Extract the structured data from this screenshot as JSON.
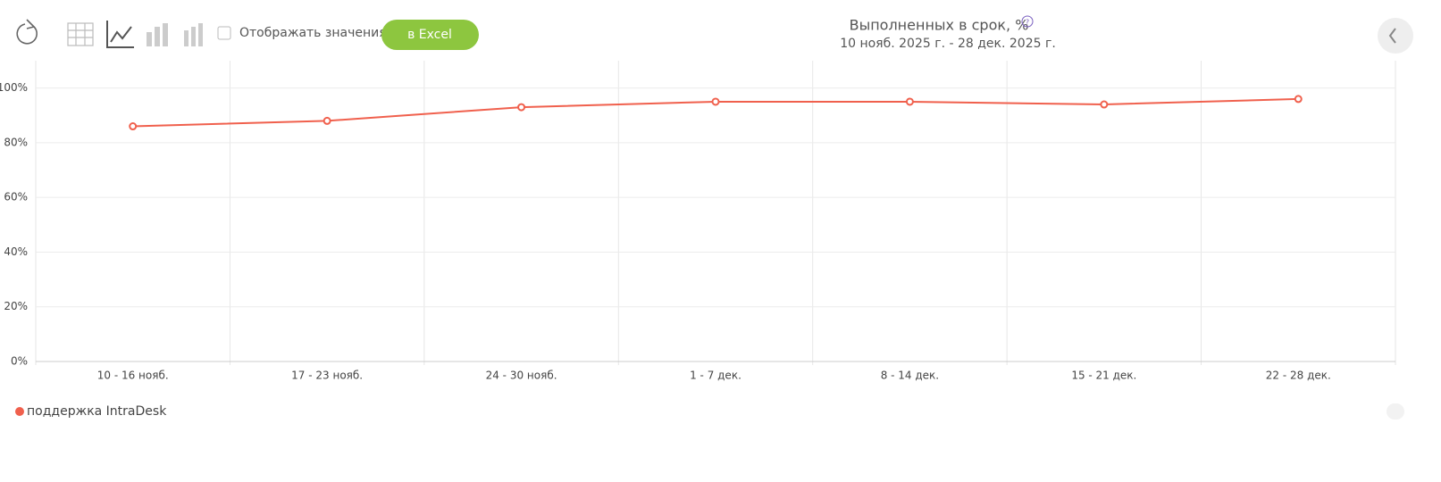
{
  "toolbar": {
    "checkbox_label": "Отображать значения",
    "button_label": "в Excel"
  },
  "chart_data": {
    "type": "line",
    "title": "Выполненных в срок, %",
    "subtitle": "10 нояб. 2025 г. - 28 дек. 2025 г.",
    "categories": [
      "10 - 16 нояб.",
      "17 - 23 нояб.",
      "24 - 30 нояб.",
      "1 - 7 дек.",
      "8 - 14 дек.",
      "15 - 21 дек.",
      "22 - 28 дек."
    ],
    "series": [
      {
        "name": "поддержка IntraDesk",
        "color": "#f0604d",
        "values": [
          86,
          88,
          93,
          95,
          95,
          94,
          96
        ]
      }
    ],
    "ylim": [
      0,
      110
    ],
    "yticks": [
      {
        "value": 0,
        "label": "0%"
      },
      {
        "value": 20,
        "label": "20%"
      },
      {
        "value": 40,
        "label": "40%"
      },
      {
        "value": 60,
        "label": "60%"
      },
      {
        "value": 80,
        "label": "80%"
      },
      {
        "value": 100,
        "label": "100%"
      }
    ],
    "grid": true,
    "legend": "bottom-left"
  }
}
